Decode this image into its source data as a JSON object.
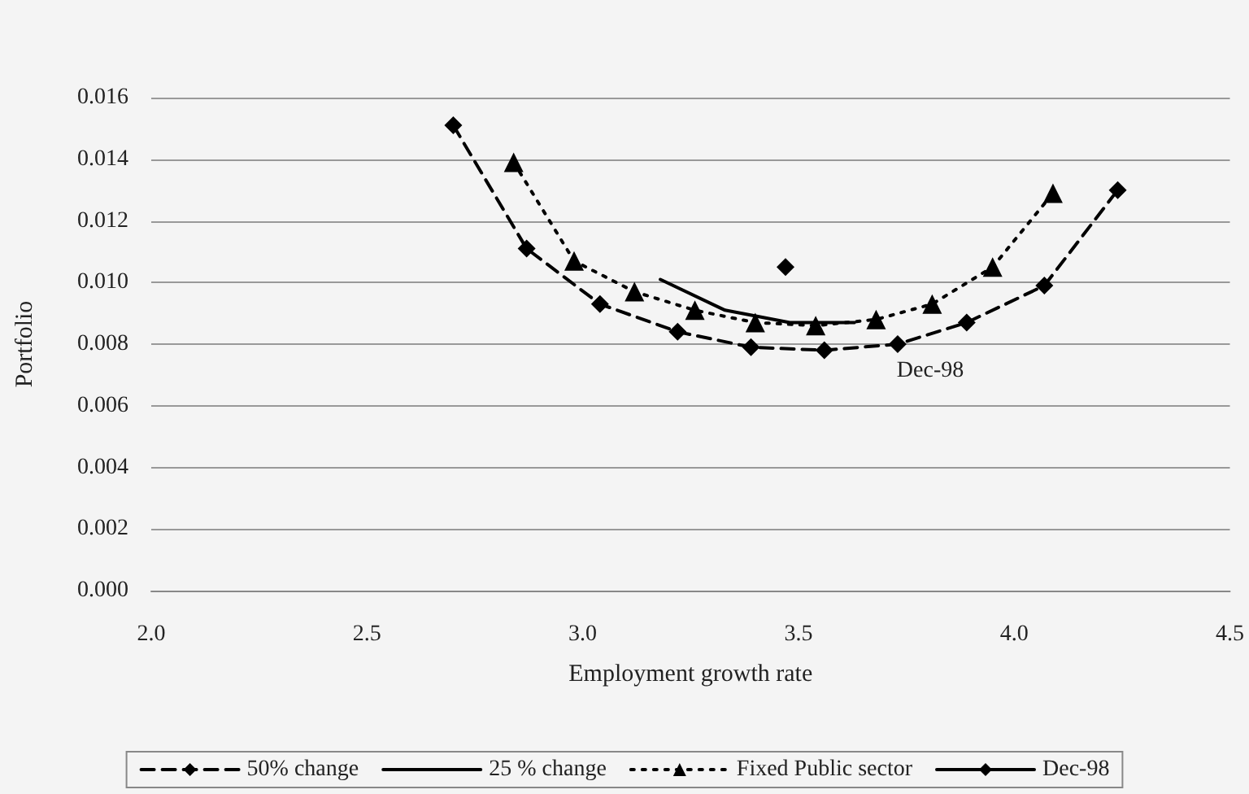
{
  "chart_data": {
    "type": "line",
    "xlabel": "Employment growth rate",
    "ylabel": "Portfolio",
    "xlim": [
      2.0,
      4.5
    ],
    "xticks": [
      {
        "value": 2.0,
        "label": "2.0"
      },
      {
        "value": 2.5,
        "label": "2.5"
      },
      {
        "value": 3.0,
        "label": "3.0"
      },
      {
        "value": 3.5,
        "label": "3.5"
      },
      {
        "value": 4.0,
        "label": "4.0"
      },
      {
        "value": 4.5,
        "label": "4.5"
      }
    ],
    "ylim": [
      0,
      0.016
    ],
    "yticks": [
      {
        "value": 0,
        "label": "0.000"
      },
      {
        "value": 0.002,
        "label": "0.002"
      },
      {
        "value": 0.004,
        "label": "0.004"
      },
      {
        "value": 0.006,
        "label": "0.006"
      },
      {
        "value": 0.008,
        "label": "0.008"
      },
      {
        "value": 0.01,
        "label": "0.010"
      },
      {
        "value": 0.012,
        "label": "0.012"
      },
      {
        "value": 0.014,
        "label": "0.014"
      },
      {
        "value": 0.016,
        "label": "0.016"
      }
    ],
    "grid": "y",
    "legend": "bottom",
    "series": [
      {
        "name": "50% change",
        "color": "#000000",
        "marker": "diamond",
        "line_style": "dashed",
        "x": [
          2.7,
          2.87,
          3.04,
          3.22,
          3.39,
          3.56,
          3.73,
          3.89,
          4.07,
          4.24
        ],
        "values": [
          0.0151,
          0.0111,
          0.0093,
          0.0084,
          0.0079,
          0.0078,
          0.008,
          0.0087,
          0.0099,
          0.013
        ]
      },
      {
        "name": "25 % change",
        "color": "#000000",
        "marker": "none",
        "line_style": "solid",
        "x": [
          3.18,
          3.33,
          3.48,
          3.63
        ],
        "values": [
          0.0101,
          0.0091,
          0.0087,
          0.0087
        ]
      },
      {
        "name": "Fixed Public sector",
        "color": "#000000",
        "marker": "triangle",
        "line_style": "dotted",
        "x": [
          2.84,
          2.98,
          3.12,
          3.26,
          3.4,
          3.54,
          3.68,
          3.81,
          3.95,
          4.09
        ],
        "values": [
          0.0139,
          0.0107,
          0.0097,
          0.0091,
          0.0087,
          0.0086,
          0.0088,
          0.0093,
          0.0105,
          0.0129
        ]
      },
      {
        "name": "Dec-98",
        "color": "#000000",
        "marker": "diamond",
        "line_style": "solid",
        "x": [
          3.47
        ],
        "values": [
          0.0105
        ]
      }
    ],
    "annotations": [
      "Dec-98"
    ]
  }
}
